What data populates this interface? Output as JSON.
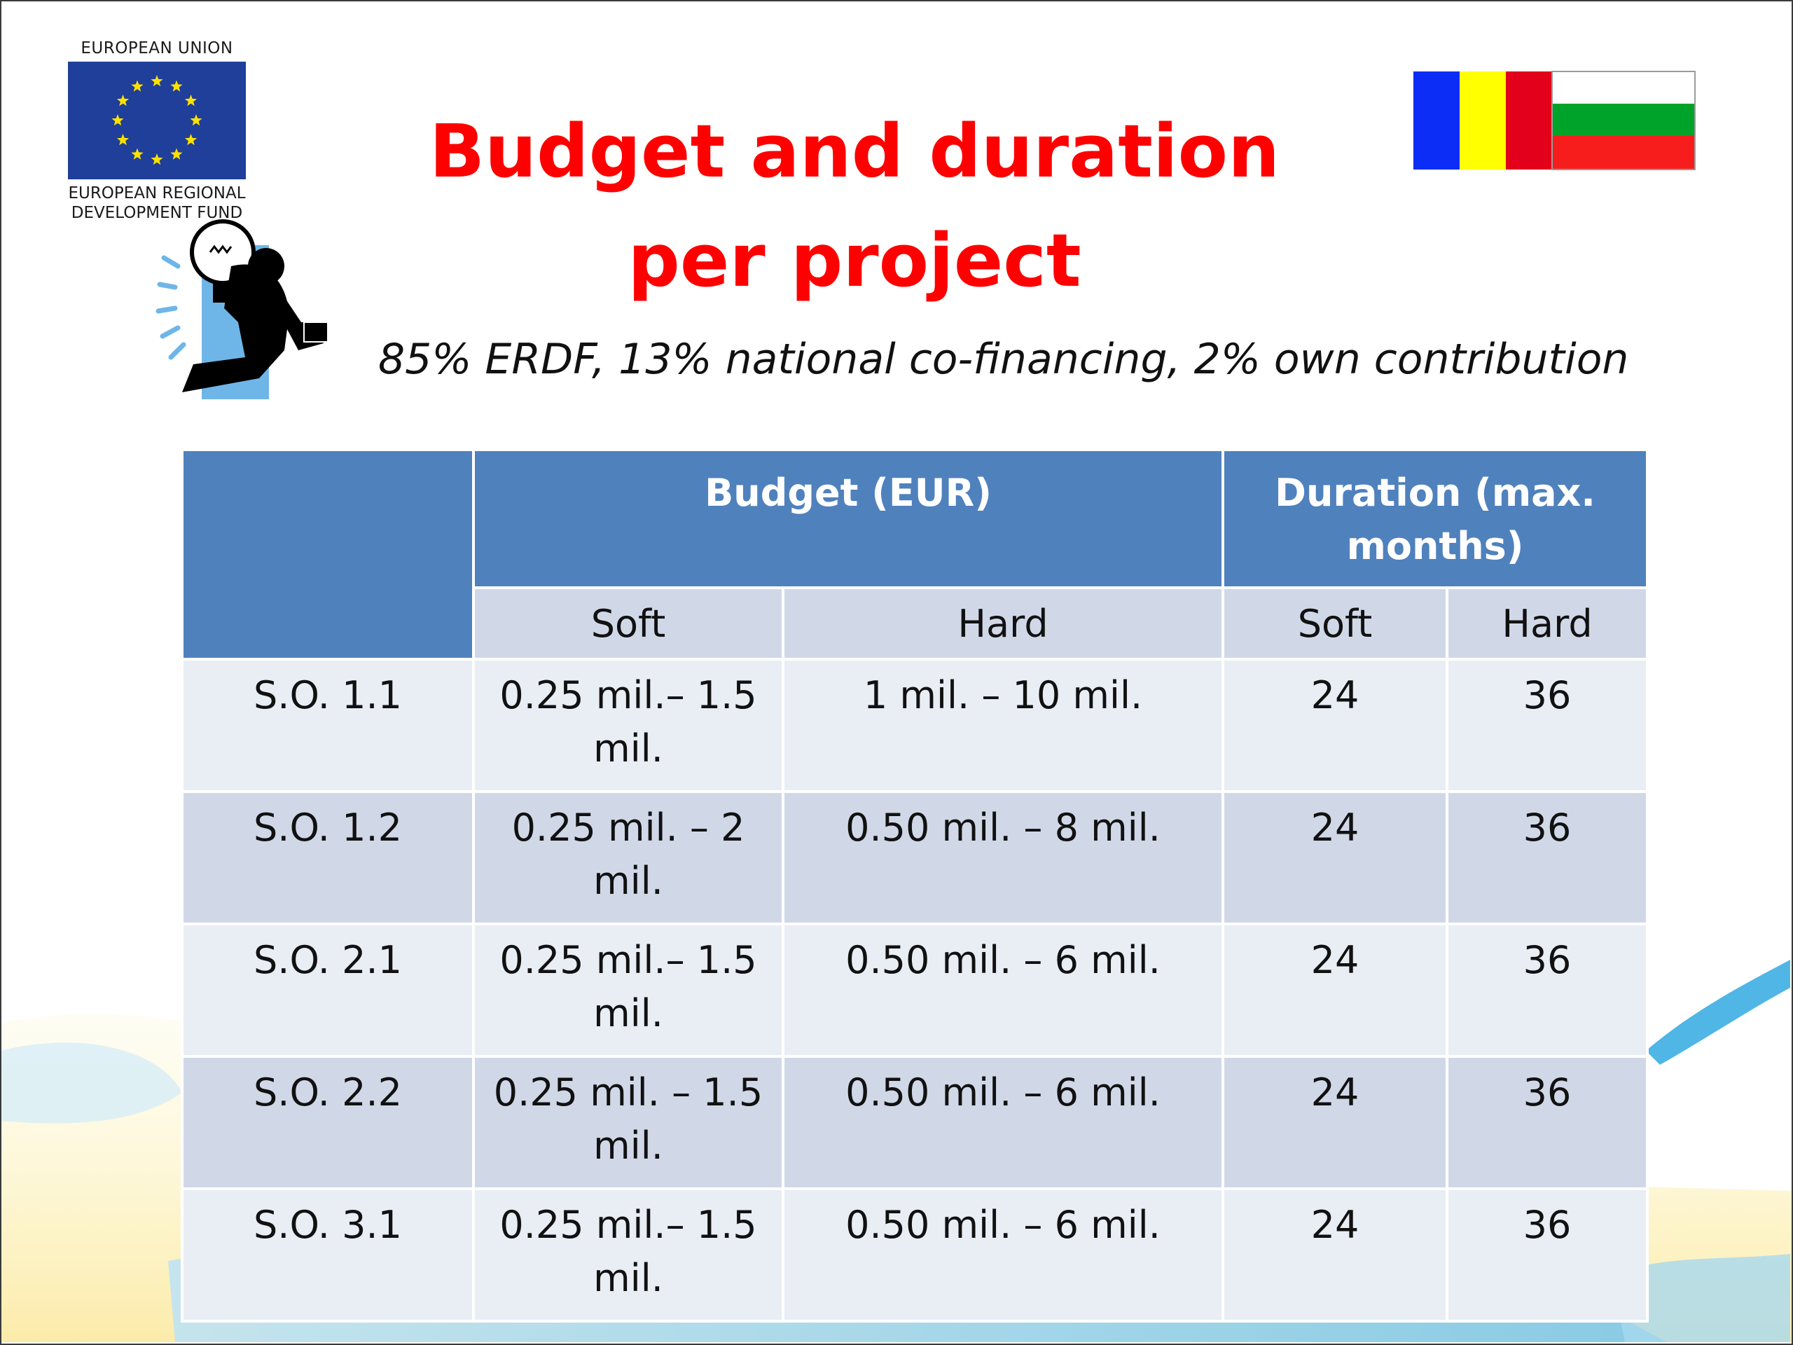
{
  "eu_logo": {
    "top_text": "EUROPEAN UNION",
    "bottom_line1": "EUROPEAN REGIONAL",
    "bottom_line2": "DEVELOPMENT FUND"
  },
  "title_line1": "Budget and duration",
  "title_line2": "per project",
  "subtitle": "85% ERDF, 13% national co-financing, 2% own contribution",
  "colors": {
    "title": "#fe0000",
    "header": "#4f81bd",
    "row_light": "#e9edf4",
    "row_dark": "#d0d8e8"
  },
  "table": {
    "header_budget": "Budget (EUR)",
    "header_duration_line1": "Duration (max.",
    "header_duration_line2": "months)",
    "sub_budget_soft": "Soft",
    "sub_budget_hard": "Hard",
    "sub_duration_soft": "Soft",
    "sub_duration_hard": "Hard",
    "rows": [
      {
        "so": "S.O. 1.1",
        "soft_l1": "0.25 mil.– 1.5",
        "soft_l2": "mil.",
        "hard": "1 mil. – 10 mil.",
        "dur_soft": "24",
        "dur_hard": "36"
      },
      {
        "so": "S.O. 1.2",
        "soft_l1": "0.25 mil. – 2",
        "soft_l2": "mil.",
        "hard": "0.50 mil. – 8 mil.",
        "dur_soft": "24",
        "dur_hard": "36"
      },
      {
        "so": "S.O. 2.1",
        "soft_l1": "0.25 mil.– 1.5",
        "soft_l2": "mil.",
        "hard": "0.50 mil. – 6 mil.",
        "dur_soft": "24",
        "dur_hard": "36"
      },
      {
        "so": "S.O. 2.2",
        "soft_l1": "0.25 mil. – 1.5",
        "soft_l2": "mil.",
        "hard": "0.50 mil. – 6 mil.",
        "dur_soft": "24",
        "dur_hard": "36"
      },
      {
        "so": "S.O. 3.1",
        "soft_l1": "0.25 mil.– 1.5",
        "soft_l2": "mil.",
        "hard": "0.50 mil. – 6 mil.",
        "dur_soft": "24",
        "dur_hard": "36"
      }
    ]
  }
}
